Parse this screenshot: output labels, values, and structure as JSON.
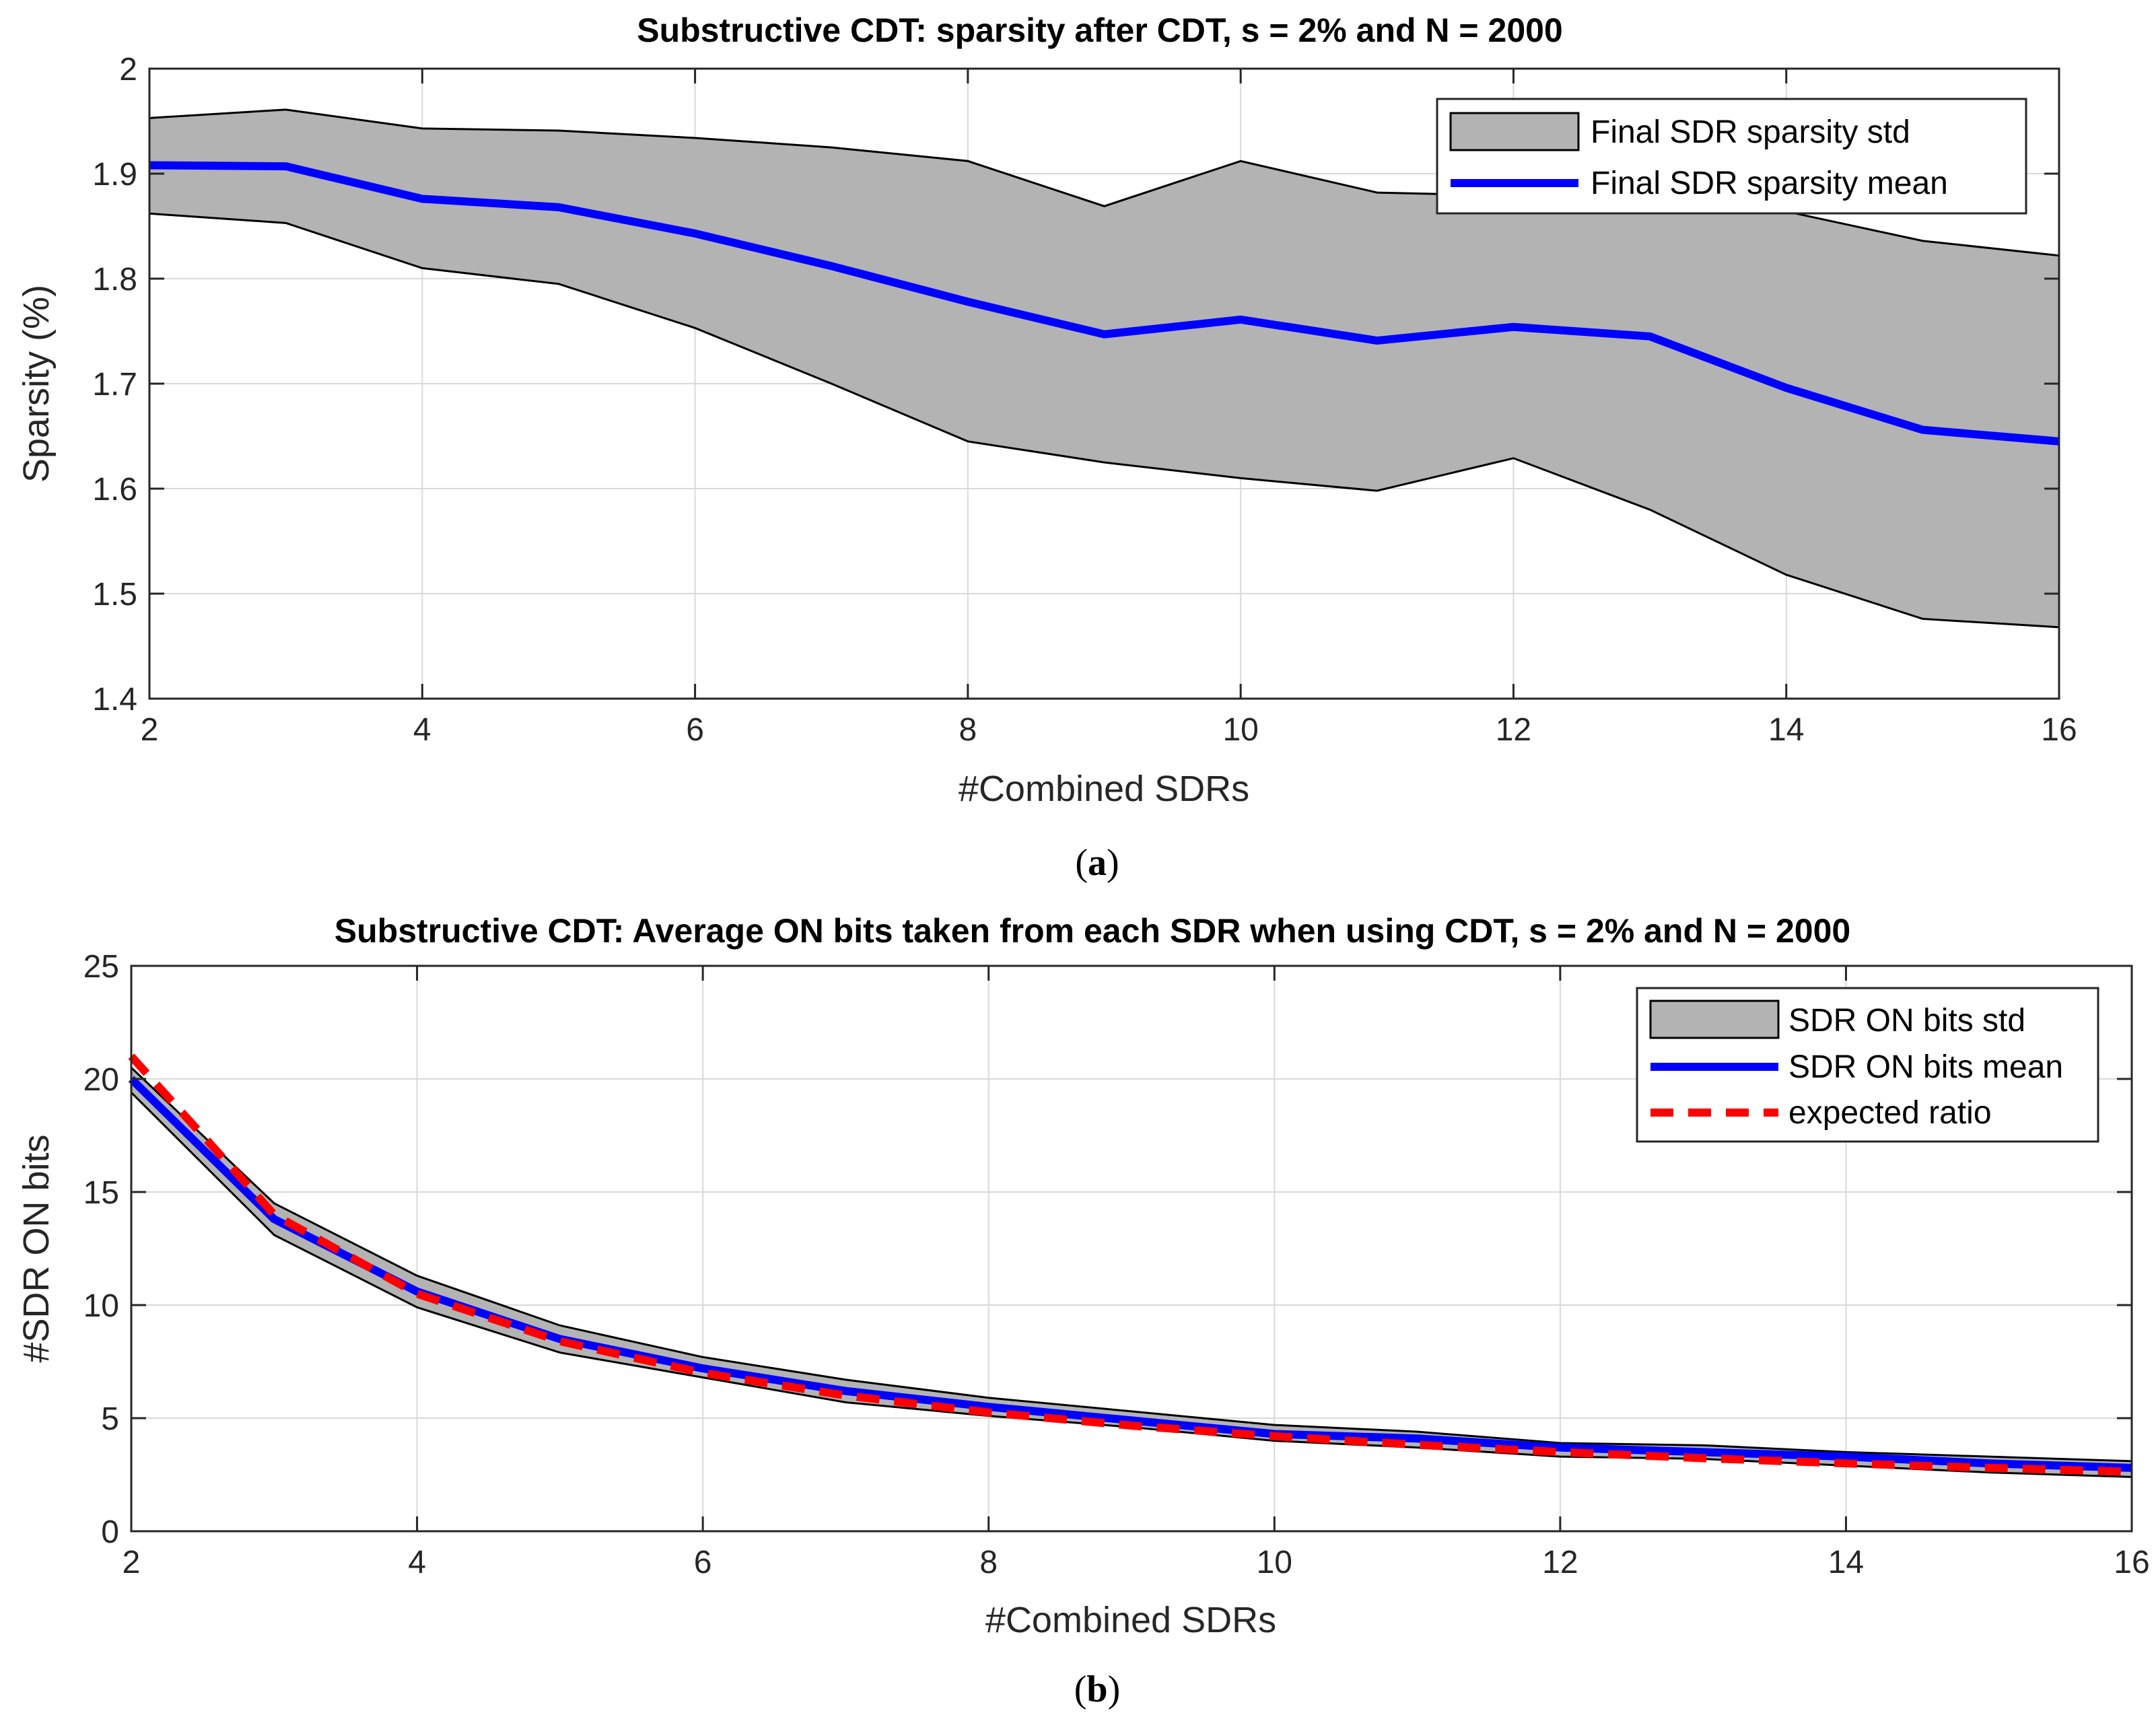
{
  "chart_data": [
    {
      "type": "line",
      "title": "Substructive CDT:  sparsity after CDT, s = 2% and N = 2000",
      "xlabel": "#Combined SDRs",
      "ylabel": "Sparsity (%)",
      "caption": {
        "open": "(",
        "letter": "a",
        "close": ")"
      },
      "xlim": [
        2,
        16
      ],
      "ylim": [
        1.4,
        2.0
      ],
      "xticks": [
        "2",
        "4",
        "6",
        "8",
        "10",
        "12",
        "14",
        "16"
      ],
      "yticks": [
        "1.4",
        "1.5",
        "1.6",
        "1.7",
        "1.8",
        "1.9",
        "2"
      ],
      "grid": true,
      "legend_position": "top-right",
      "x": [
        2,
        3,
        4,
        5,
        6,
        7,
        8,
        9,
        10,
        11,
        12,
        13,
        14,
        15,
        16
      ],
      "series": [
        {
          "name": "Final SDR sparsity mean",
          "kind": "line",
          "color": "#0000ff",
          "values": [
            1.908,
            1.907,
            1.876,
            1.868,
            1.843,
            1.812,
            1.778,
            1.747,
            1.761,
            1.741,
            1.754,
            1.745,
            1.696,
            1.656,
            1.645
          ]
        },
        {
          "name": "Final SDR sparsity std",
          "kind": "band",
          "color": "#b3b3b3",
          "upper": [
            1.953,
            1.961,
            1.943,
            1.941,
            1.934,
            1.925,
            1.912,
            1.869,
            1.912,
            1.882,
            1.879,
            1.868,
            1.864,
            1.836,
            1.822
          ],
          "lower": [
            1.862,
            1.853,
            1.81,
            1.795,
            1.753,
            1.7,
            1.645,
            1.625,
            1.61,
            1.598,
            1.629,
            1.58,
            1.518,
            1.476,
            1.468
          ]
        }
      ]
    },
    {
      "type": "line",
      "title": "Substructive CDT: Average ON bits taken from each SDR when using CDT, s = 2% and N = 2000",
      "xlabel": "#Combined SDRs",
      "ylabel": "#SDR ON bits",
      "caption": {
        "open": "(",
        "letter": "b",
        "close": ")"
      },
      "xlim": [
        2,
        16
      ],
      "ylim": [
        0,
        25
      ],
      "xticks": [
        "2",
        "4",
        "6",
        "8",
        "10",
        "12",
        "14",
        "16"
      ],
      "yticks": [
        "0",
        "5",
        "10",
        "15",
        "20",
        "25"
      ],
      "grid": true,
      "legend_position": "top-right",
      "x": [
        2,
        3,
        4,
        5,
        6,
        7,
        8,
        9,
        10,
        11,
        12,
        13,
        14,
        15,
        16
      ],
      "series": [
        {
          "name": "SDR ON bits mean",
          "kind": "line",
          "color": "#0000ff",
          "values": [
            20.0,
            13.8,
            10.6,
            8.5,
            7.2,
            6.2,
            5.5,
            4.9,
            4.3,
            4.1,
            3.7,
            3.5,
            3.3,
            3.0,
            2.8
          ]
        },
        {
          "name": "SDR ON bits std",
          "kind": "band",
          "color": "#b3b3b3",
          "upper": [
            20.5,
            14.5,
            11.3,
            9.1,
            7.7,
            6.7,
            5.9,
            5.3,
            4.7,
            4.4,
            3.9,
            3.8,
            3.5,
            3.3,
            3.1
          ],
          "lower": [
            19.4,
            13.1,
            9.9,
            7.9,
            6.8,
            5.7,
            5.1,
            4.6,
            4.0,
            3.7,
            3.3,
            3.2,
            2.9,
            2.6,
            2.4
          ]
        },
        {
          "name": "expected ratio",
          "kind": "dashed",
          "color": "#ff0000",
          "values": [
            21.0,
            14.0,
            10.5,
            8.4,
            7.0,
            6.0,
            5.25,
            4.67,
            4.2,
            3.82,
            3.5,
            3.23,
            3.0,
            2.8,
            2.63
          ]
        }
      ]
    }
  ]
}
